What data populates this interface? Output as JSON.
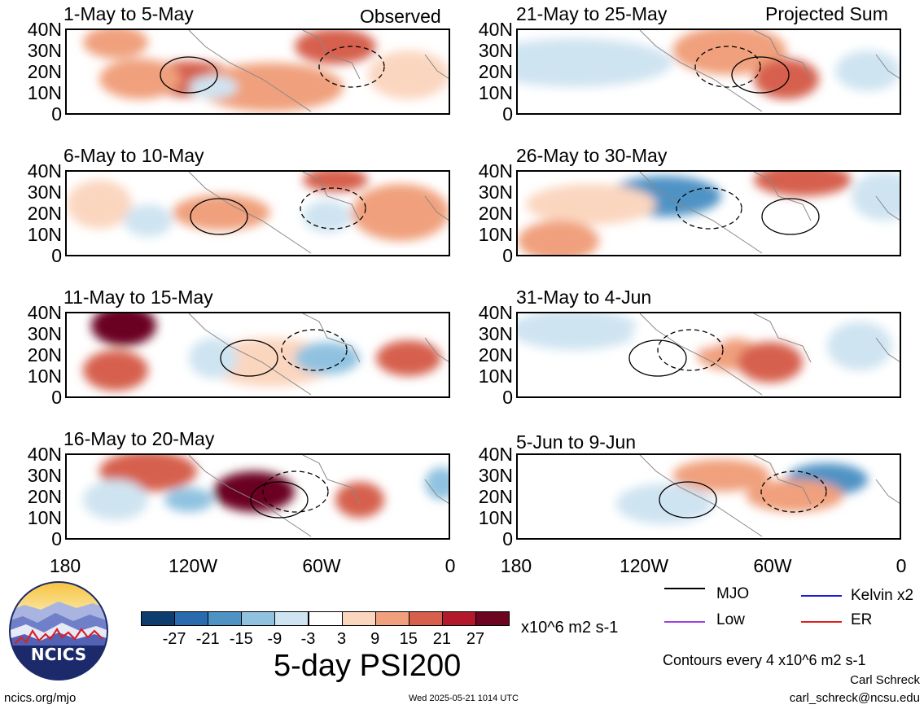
{
  "chart_data": {
    "type": "heatmap",
    "title": "5-day PSI200",
    "units": "x10^6 m2 s-1",
    "colorbar": {
      "ticks": [
        "-27",
        "-21",
        "-15",
        "-9",
        "-3",
        "3",
        "9",
        "15",
        "21",
        "27"
      ],
      "colors": [
        "#0d3c6e",
        "#2a6aae",
        "#4f93c5",
        "#90c2e0",
        "#cfe4f1",
        "#ffffff",
        "#fbd6bf",
        "#f0a07d",
        "#d6604d",
        "#b21a2b",
        "#6b0520"
      ]
    },
    "y_ticks": [
      "40N",
      "30N",
      "20N",
      "10N",
      "0"
    ],
    "x_ticks": [
      "180",
      "120W",
      "60W",
      "0"
    ],
    "left_column_label": "Observed",
    "right_column_label": "Projected Sum",
    "panels": [
      {
        "title": "1-May to 5-May",
        "column": "left",
        "row": 0
      },
      {
        "title": "6-May to 10-May",
        "column": "left",
        "row": 1
      },
      {
        "title": "11-May to 15-May",
        "column": "left",
        "row": 2
      },
      {
        "title": "16-May to 20-May",
        "column": "left",
        "row": 3
      },
      {
        "title": "21-May to 25-May",
        "column": "right",
        "row": 0
      },
      {
        "title": "26-May to 30-May",
        "column": "right",
        "row": 1
      },
      {
        "title": "31-May to 4-Jun",
        "column": "right",
        "row": 2
      },
      {
        "title": "5-Jun to 9-Jun",
        "column": "right",
        "row": 3
      }
    ],
    "legend": [
      {
        "name": "MJO",
        "color": "#000000"
      },
      {
        "name": "Kelvin x2",
        "color": "#1a1adc"
      },
      {
        "name": "Low",
        "color": "#a040e0"
      },
      {
        "name": "ER",
        "color": "#e02020"
      }
    ],
    "contour_note": "Contours every 4 x10^6 m2 s-1"
  },
  "footer": {
    "logo_text": "NCICS",
    "site": "ncics.org/mjo",
    "timestamp": "Wed 2025-05-21 1014 UTC",
    "author": "Carl Schreck",
    "email": "carl_schreck@ncsu.edu"
  }
}
